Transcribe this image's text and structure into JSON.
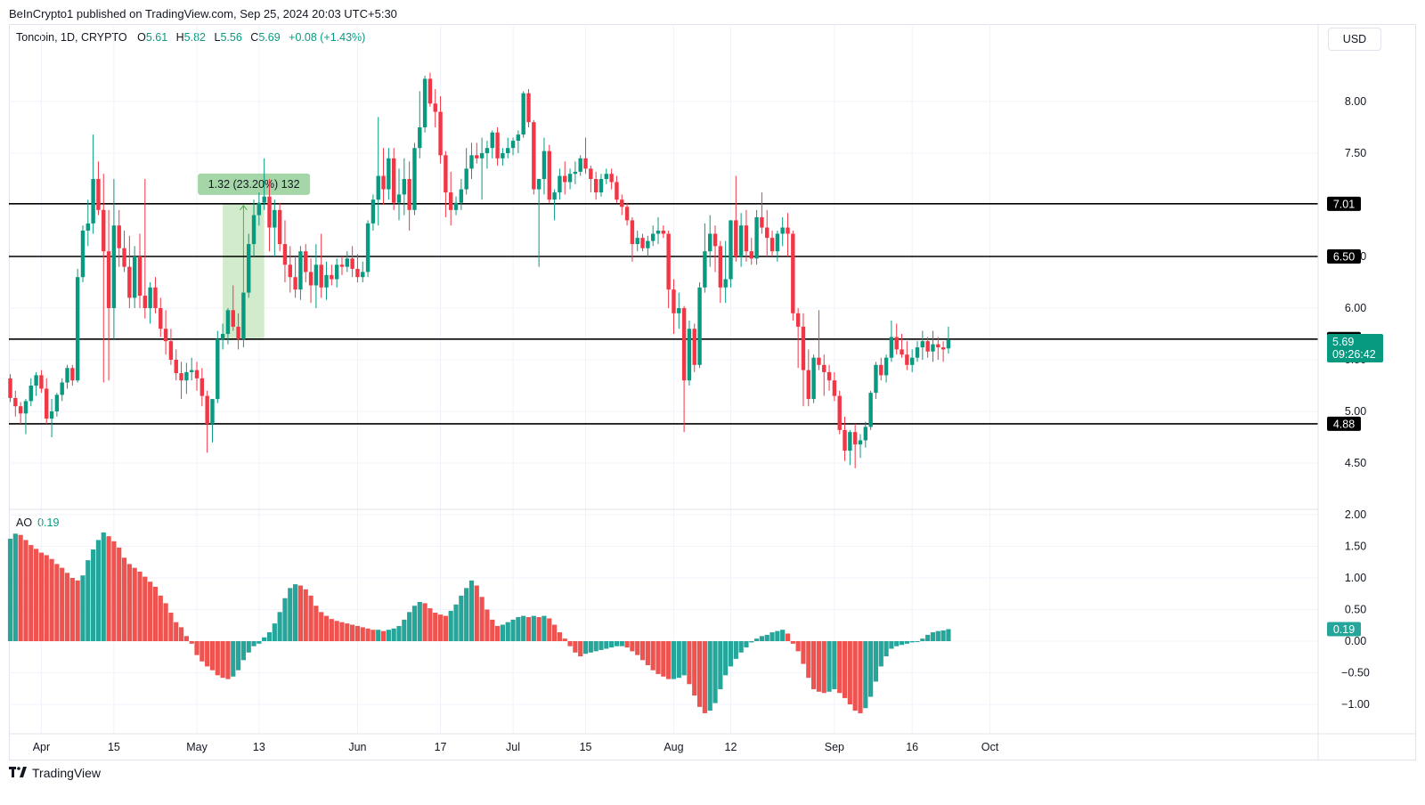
{
  "header": {
    "published": "BeInCrypto1 published on TradingView.com, Sep 25, 2024 20:03 UTC+5:30"
  },
  "legend": {
    "symbol": "Toncoin, 1D, CRYPTO",
    "o_label": "O",
    "o_value": "5.61",
    "h_label": "H",
    "h_value": "5.82",
    "l_label": "L",
    "l_value": "5.56",
    "c_label": "C",
    "c_value": "5.69",
    "change": "+0.08 (+1.43%)"
  },
  "currency": "USD",
  "ao_legend": {
    "label": "AO",
    "value": "0.19"
  },
  "brand": {
    "name": "TradingView"
  },
  "colors": {
    "up": "#089981",
    "down": "#f23645",
    "ao_up": "#26a69a",
    "ao_down": "#ef5350",
    "grid": "#f0f3fa",
    "range_fill": "#c8e6c0"
  },
  "chart_data": [
    {
      "type": "candlestick",
      "title": "Toncoin, 1D, CRYPTO",
      "ylabel": "USD",
      "ylim": [
        4.2,
        8.6
      ],
      "y_ticks": [
        4.5,
        5.0,
        5.5,
        6.0,
        6.5,
        7.5,
        8.0
      ],
      "x_ticks": [
        "Apr",
        "15",
        "May",
        "13",
        "Jun",
        "17",
        "Jul",
        "15",
        "Aug",
        "12",
        "Sep",
        "16",
        "Oct"
      ],
      "start_date": "2024-03-26",
      "horizontal_levels": [
        {
          "label": "7.01",
          "value": 7.01
        },
        {
          "label": "6.50",
          "value": 6.5
        },
        {
          "label": "5.70",
          "value": 5.7
        },
        {
          "label": "4.88",
          "value": 4.88
        }
      ],
      "last_price": {
        "label": "5.69",
        "countdown": "09:26:42",
        "value": 5.69
      },
      "annotation": {
        "text": "1.32 (23.20%) 132",
        "from_date": "2024-05-06",
        "to_date": "2024-05-14",
        "from_value": 5.69,
        "to_value": 7.01
      },
      "candles": [
        [
          5.32,
          5.36,
          5.09,
          5.13
        ],
        [
          5.13,
          5.2,
          4.95,
          5.05
        ],
        [
          5.05,
          5.09,
          4.88,
          4.98
        ],
        [
          4.98,
          5.12,
          4.78,
          5.1
        ],
        [
          5.1,
          5.32,
          5.05,
          5.25
        ],
        [
          5.25,
          5.38,
          5.15,
          5.35
        ],
        [
          5.35,
          5.4,
          5.18,
          5.22
        ],
        [
          5.22,
          5.32,
          4.88,
          4.93
        ],
        [
          4.93,
          5.12,
          4.75,
          5.0
        ],
        [
          5.0,
          5.18,
          4.95,
          5.16
        ],
        [
          5.16,
          5.32,
          5.1,
          5.28
        ],
        [
          5.28,
          5.45,
          5.22,
          5.42
        ],
        [
          5.42,
          5.45,
          5.25,
          5.3
        ],
        [
          5.3,
          6.38,
          5.28,
          6.3
        ],
        [
          6.3,
          6.8,
          6.25,
          6.75
        ],
        [
          6.75,
          7.05,
          6.6,
          6.82
        ],
        [
          6.82,
          7.68,
          6.72,
          7.25
        ],
        [
          7.25,
          7.42,
          6.9,
          6.95
        ],
        [
          6.95,
          7.3,
          5.28,
          6.55
        ],
        [
          6.55,
          6.95,
          5.3,
          6.0
        ],
        [
          6.0,
          7.25,
          5.7,
          6.8
        ],
        [
          6.8,
          6.95,
          6.4,
          6.58
        ],
        [
          6.58,
          6.75,
          6.35,
          6.4
        ],
        [
          6.4,
          6.7,
          6.0,
          6.1
        ],
        [
          6.1,
          6.6,
          6.0,
          6.5
        ],
        [
          6.5,
          6.72,
          6.0,
          6.12
        ],
        [
          6.12,
          7.25,
          5.9,
          6.0
        ],
        [
          6.0,
          6.25,
          5.85,
          6.2
        ],
        [
          6.2,
          6.3,
          5.95,
          6.0
        ],
        [
          6.0,
          6.1,
          5.72,
          5.8
        ],
        [
          5.8,
          5.98,
          5.55,
          5.68
        ],
        [
          5.68,
          5.8,
          5.45,
          5.5
        ],
        [
          5.5,
          5.6,
          5.3,
          5.37
        ],
        [
          5.37,
          5.48,
          5.12,
          5.3
        ],
        [
          5.3,
          5.47,
          5.17,
          5.38
        ],
        [
          5.38,
          5.52,
          5.3,
          5.4
        ],
        [
          5.4,
          5.48,
          5.2,
          5.32
        ],
        [
          5.32,
          5.42,
          5.05,
          5.15
        ],
        [
          5.15,
          5.2,
          4.6,
          4.88
        ],
        [
          4.88,
          5.12,
          4.7,
          5.12
        ],
        [
          5.12,
          5.78,
          5.08,
          5.7
        ],
        [
          5.7,
          5.85,
          5.6,
          5.75
        ],
        [
          5.75,
          6.0,
          5.65,
          5.98
        ],
        [
          5.98,
          6.22,
          5.78,
          5.82
        ],
        [
          5.82,
          5.95,
          5.6,
          5.7
        ],
        [
          5.7,
          6.12,
          5.62,
          6.15
        ],
        [
          6.15,
          6.72,
          6.1,
          6.62
        ],
        [
          6.62,
          7.05,
          6.5,
          6.9
        ],
        [
          6.9,
          7.12,
          6.8,
          7.02
        ],
        [
          7.02,
          7.45,
          6.95,
          7.08
        ],
        [
          7.08,
          7.25,
          6.55,
          6.78
        ],
        [
          6.78,
          7.05,
          6.5,
          6.95
        ],
        [
          6.95,
          7.02,
          6.55,
          6.62
        ],
        [
          6.62,
          6.85,
          6.25,
          6.42
        ],
        [
          6.42,
          6.6,
          6.15,
          6.3
        ],
        [
          6.3,
          6.5,
          6.1,
          6.18
        ],
        [
          6.18,
          6.6,
          6.08,
          6.55
        ],
        [
          6.55,
          6.62,
          6.25,
          6.35
        ],
        [
          6.35,
          6.48,
          6.05,
          6.22
        ],
        [
          6.22,
          6.62,
          6.0,
          6.42
        ],
        [
          6.42,
          6.72,
          6.1,
          6.2
        ],
        [
          6.2,
          6.45,
          6.08,
          6.32
        ],
        [
          6.32,
          6.42,
          6.22,
          6.28
        ],
        [
          6.28,
          6.48,
          6.2,
          6.42
        ],
        [
          6.42,
          6.5,
          6.32,
          6.4
        ],
        [
          6.4,
          6.55,
          6.35,
          6.48
        ],
        [
          6.48,
          6.6,
          6.3,
          6.38
        ],
        [
          6.38,
          6.52,
          6.25,
          6.3
        ],
        [
          6.3,
          6.45,
          6.25,
          6.35
        ],
        [
          6.35,
          6.85,
          6.3,
          6.82
        ],
        [
          6.82,
          7.1,
          6.75,
          7.05
        ],
        [
          7.05,
          7.85,
          6.8,
          7.28
        ],
        [
          7.28,
          7.55,
          7.0,
          7.15
        ],
        [
          7.15,
          7.55,
          7.05,
          7.45
        ],
        [
          7.45,
          7.55,
          6.95,
          7.02
        ],
        [
          7.02,
          7.35,
          6.85,
          7.1
        ],
        [
          7.1,
          7.45,
          6.9,
          7.25
        ],
        [
          7.25,
          7.42,
          6.75,
          6.95
        ],
        [
          6.95,
          7.6,
          6.9,
          7.55
        ],
        [
          7.55,
          8.1,
          7.45,
          7.75
        ],
        [
          7.75,
          8.25,
          7.7,
          8.22
        ],
        [
          8.22,
          8.28,
          7.95,
          7.98
        ],
        [
          7.98,
          8.12,
          7.75,
          7.9
        ],
        [
          7.9,
          8.05,
          7.4,
          7.48
        ],
        [
          7.48,
          7.52,
          6.88,
          7.12
        ],
        [
          7.12,
          7.32,
          6.8,
          6.95
        ],
        [
          6.95,
          7.08,
          6.9,
          7.02
        ],
        [
          7.02,
          7.25,
          6.95,
          7.15
        ],
        [
          7.15,
          7.55,
          7.1,
          7.35
        ],
        [
          7.35,
          7.6,
          7.25,
          7.48
        ],
        [
          7.48,
          7.6,
          7.4,
          7.45
        ],
        [
          7.45,
          7.65,
          7.05,
          7.5
        ],
        [
          7.5,
          7.62,
          7.35,
          7.55
        ],
        [
          7.55,
          7.72,
          7.45,
          7.7
        ],
        [
          7.7,
          7.75,
          7.38,
          7.45
        ],
        [
          7.45,
          7.55,
          7.38,
          7.5
        ],
        [
          7.5,
          7.65,
          7.45,
          7.55
        ],
        [
          7.55,
          7.65,
          7.48,
          7.62
        ],
        [
          7.62,
          7.72,
          7.5,
          7.68
        ],
        [
          7.68,
          8.1,
          7.65,
          8.08
        ],
        [
          8.08,
          8.12,
          7.75,
          7.8
        ],
        [
          7.8,
          7.82,
          7.1,
          7.15
        ],
        [
          7.15,
          7.25,
          6.4,
          7.25
        ],
        [
          7.25,
          7.65,
          7.1,
          7.52
        ],
        [
          7.52,
          7.58,
          7.02,
          7.05
        ],
        [
          7.05,
          7.15,
          6.85,
          7.12
        ],
        [
          7.12,
          7.35,
          7.05,
          7.28
        ],
        [
          7.28,
          7.42,
          7.1,
          7.22
        ],
        [
          7.22,
          7.35,
          7.15,
          7.3
        ],
        [
          7.3,
          7.42,
          7.2,
          7.32
        ],
        [
          7.32,
          7.48,
          7.28,
          7.45
        ],
        [
          7.45,
          7.65,
          7.3,
          7.35
        ],
        [
          7.35,
          7.38,
          7.12,
          7.25
        ],
        [
          7.25,
          7.32,
          7.05,
          7.12
        ],
        [
          7.12,
          7.3,
          7.08,
          7.25
        ],
        [
          7.25,
          7.35,
          7.2,
          7.3
        ],
        [
          7.3,
          7.35,
          7.15,
          7.22
        ],
        [
          7.22,
          7.28,
          7.02,
          7.05
        ],
        [
          7.05,
          7.1,
          6.9,
          6.98
        ],
        [
          6.98,
          7.02,
          6.8,
          6.85
        ],
        [
          6.85,
          6.88,
          6.45,
          6.62
        ],
        [
          6.62,
          6.75,
          6.55,
          6.68
        ],
        [
          6.68,
          6.72,
          6.55,
          6.58
        ],
        [
          6.58,
          6.7,
          6.5,
          6.65
        ],
        [
          6.65,
          6.8,
          6.6,
          6.72
        ],
        [
          6.72,
          6.88,
          6.62,
          6.75
        ],
        [
          6.75,
          6.8,
          6.68,
          6.72
        ],
        [
          6.72,
          6.75,
          6.0,
          6.18
        ],
        [
          6.18,
          6.28,
          5.75,
          5.95
        ],
        [
          5.95,
          6.15,
          5.8,
          6.0
        ],
        [
          6.0,
          6.02,
          4.8,
          5.3
        ],
        [
          5.3,
          5.88,
          5.25,
          5.8
        ],
        [
          5.8,
          5.85,
          5.38,
          5.45
        ],
        [
          5.45,
          6.25,
          5.42,
          6.2
        ],
        [
          6.2,
          6.82,
          6.15,
          6.55
        ],
        [
          6.55,
          6.9,
          6.4,
          6.72
        ],
        [
          6.72,
          6.8,
          6.35,
          6.6
        ],
        [
          6.6,
          6.65,
          6.05,
          6.2
        ],
        [
          6.2,
          6.65,
          6.05,
          6.28
        ],
        [
          6.28,
          6.85,
          6.2,
          6.85
        ],
        [
          6.85,
          7.28,
          6.45,
          6.5
        ],
        [
          6.5,
          6.92,
          6.4,
          6.8
        ],
        [
          6.8,
          6.95,
          6.45,
          6.55
        ],
        [
          6.55,
          6.68,
          6.42,
          6.48
        ],
        [
          6.48,
          6.95,
          6.42,
          6.88
        ],
        [
          6.88,
          7.12,
          6.72,
          6.78
        ],
        [
          6.78,
          6.95,
          6.5,
          6.68
        ],
        [
          6.68,
          6.75,
          6.5,
          6.55
        ],
        [
          6.55,
          6.75,
          6.45,
          6.72
        ],
        [
          6.72,
          6.88,
          6.6,
          6.78
        ],
        [
          6.78,
          6.92,
          6.5,
          6.72
        ],
        [
          6.72,
          6.75,
          5.88,
          5.95
        ],
        [
          5.95,
          6.0,
          5.42,
          5.82
        ],
        [
          5.82,
          5.95,
          5.05,
          5.4
        ],
        [
          5.4,
          5.6,
          5.05,
          5.12
        ],
        [
          5.12,
          5.55,
          5.08,
          5.52
        ],
        [
          5.52,
          5.98,
          5.4,
          5.45
        ],
        [
          5.45,
          5.55,
          5.15,
          5.38
        ],
        [
          5.38,
          5.45,
          5.2,
          5.3
        ],
        [
          5.3,
          5.38,
          5.1,
          5.15
        ],
        [
          5.15,
          5.2,
          4.78,
          4.82
        ],
        [
          4.82,
          4.95,
          4.52,
          4.62
        ],
        [
          4.62,
          4.82,
          4.48,
          4.8
        ],
        [
          4.8,
          4.88,
          4.45,
          4.68
        ],
        [
          4.68,
          4.78,
          4.55,
          4.72
        ],
        [
          4.72,
          4.9,
          4.65,
          4.85
        ],
        [
          4.85,
          5.2,
          4.82,
          5.18
        ],
        [
          5.18,
          5.48,
          5.12,
          5.45
        ],
        [
          5.45,
          5.52,
          5.3,
          5.35
        ],
        [
          5.35,
          5.55,
          5.28,
          5.52
        ],
        [
          5.52,
          5.88,
          5.48,
          5.72
        ],
        [
          5.72,
          5.85,
          5.55,
          5.6
        ],
        [
          5.6,
          5.75,
          5.52,
          5.55
        ],
        [
          5.55,
          5.68,
          5.4,
          5.45
        ],
        [
          5.45,
          5.6,
          5.38,
          5.52
        ],
        [
          5.52,
          5.68,
          5.48,
          5.62
        ],
        [
          5.62,
          5.78,
          5.5,
          5.68
        ],
        [
          5.68,
          5.72,
          5.52,
          5.58
        ],
        [
          5.58,
          5.78,
          5.48,
          5.65
        ],
        [
          5.65,
          5.72,
          5.5,
          5.62
        ],
        [
          5.62,
          5.68,
          5.48,
          5.6
        ],
        [
          5.61,
          5.82,
          5.56,
          5.69
        ]
      ]
    },
    {
      "type": "bar",
      "title": "AO",
      "current_value": 0.19,
      "ylim": [
        -1.3,
        2.0
      ],
      "y_ticks": [
        2.0,
        1.5,
        1.0,
        0.5,
        0.0,
        -0.5,
        -1.0
      ],
      "y_tick_labels": [
        "2.00",
        "1.50",
        "1.00",
        "0.50",
        "0.00",
        "−0.50",
        "−1.00"
      ],
      "values": [
        1.62,
        1.7,
        1.68,
        1.6,
        1.52,
        1.46,
        1.4,
        1.36,
        1.3,
        1.22,
        1.16,
        1.08,
        1.0,
        0.96,
        1.04,
        1.28,
        1.45,
        1.6,
        1.72,
        1.66,
        1.58,
        1.48,
        1.32,
        1.22,
        1.16,
        1.1,
        1.02,
        0.94,
        0.86,
        0.72,
        0.6,
        0.45,
        0.3,
        0.22,
        0.08,
        -0.04,
        -0.22,
        -0.32,
        -0.4,
        -0.46,
        -0.54,
        -0.58,
        -0.6,
        -0.56,
        -0.46,
        -0.3,
        -0.18,
        -0.08,
        -0.04,
        0.06,
        0.14,
        0.28,
        0.46,
        0.68,
        0.84,
        0.9,
        0.88,
        0.82,
        0.72,
        0.56,
        0.46,
        0.4,
        0.35,
        0.32,
        0.3,
        0.28,
        0.26,
        0.24,
        0.22,
        0.2,
        0.18,
        0.18,
        0.16,
        0.18,
        0.2,
        0.24,
        0.34,
        0.46,
        0.56,
        0.62,
        0.6,
        0.52,
        0.45,
        0.42,
        0.4,
        0.48,
        0.58,
        0.72,
        0.84,
        0.96,
        0.88,
        0.7,
        0.5,
        0.34,
        0.24,
        0.26,
        0.3,
        0.34,
        0.38,
        0.4,
        0.38,
        0.4,
        0.38,
        0.4,
        0.36,
        0.26,
        0.14,
        0.04,
        -0.08,
        -0.18,
        -0.24,
        -0.2,
        -0.18,
        -0.16,
        -0.14,
        -0.12,
        -0.1,
        -0.08,
        -0.08,
        -0.1,
        -0.16,
        -0.22,
        -0.3,
        -0.38,
        -0.46,
        -0.52,
        -0.56,
        -0.6,
        -0.6,
        -0.58,
        -0.54,
        -0.68,
        -0.86,
        -1.04,
        -1.14,
        -1.1,
        -0.98,
        -0.76,
        -0.54,
        -0.4,
        -0.28,
        -0.18,
        -0.1,
        -0.02,
        0.04,
        0.08,
        0.1,
        0.14,
        0.16,
        0.18,
        0.12,
        -0.04,
        -0.16,
        -0.36,
        -0.58,
        -0.76,
        -0.8,
        -0.82,
        -0.8,
        -0.76,
        -0.82,
        -0.9,
        -1.0,
        -1.1,
        -1.14,
        -1.06,
        -0.88,
        -0.64,
        -0.4,
        -0.24,
        -0.12,
        -0.08,
        -0.06,
        -0.04,
        -0.02,
        0.0,
        0.04,
        0.1,
        0.14,
        0.16,
        0.17,
        0.19
      ]
    }
  ]
}
